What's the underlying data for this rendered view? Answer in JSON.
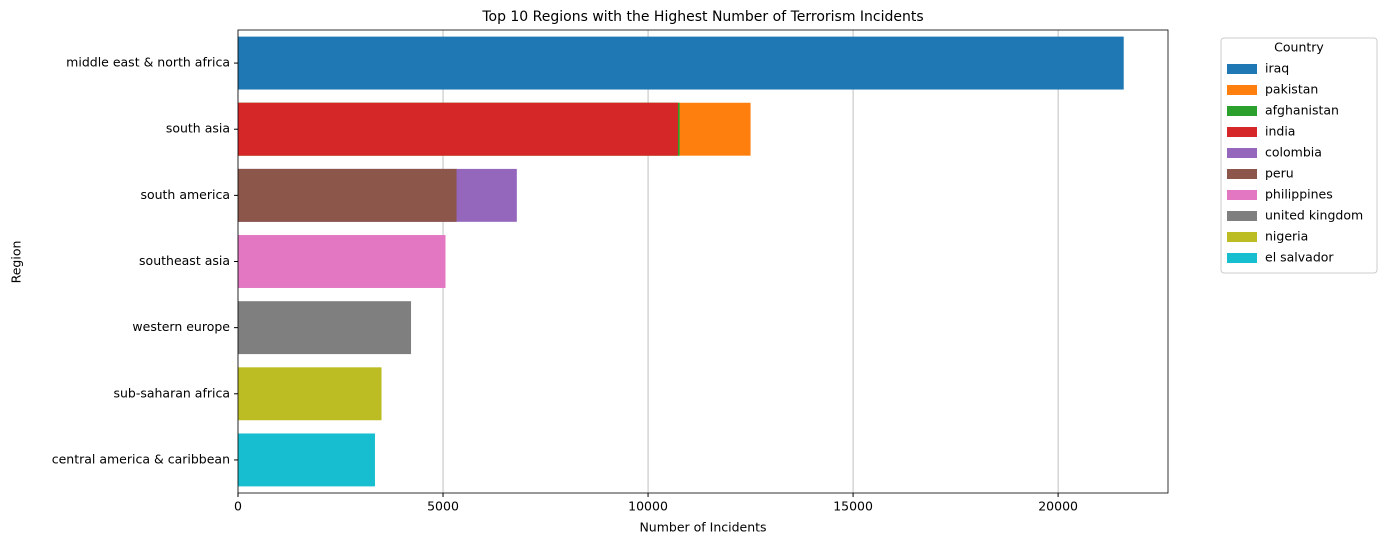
{
  "chart_data": {
    "type": "bar",
    "orientation": "horizontal",
    "overlap": true,
    "title": "Top 10 Regions with the Highest Number of Terrorism Incidents",
    "x_label": "Number of Incidents",
    "y_label": "Region",
    "categories": [
      "middle east & north africa",
      "south asia",
      "south america",
      "southeast asia",
      "western europe",
      "sub-saharan africa",
      "central america & caribbean"
    ],
    "series": [
      {
        "name": "iraq",
        "color": "#1f77b4",
        "values": [
          21600,
          null,
          null,
          null,
          null,
          null,
          null
        ]
      },
      {
        "name": "pakistan",
        "color": "#ff7f0e",
        "values": [
          null,
          12500,
          null,
          null,
          null,
          null,
          null
        ]
      },
      {
        "name": "afghanistan",
        "color": "#2ca02c",
        "values": [
          null,
          10770,
          null,
          null,
          null,
          null,
          null
        ]
      },
      {
        "name": "india",
        "color": "#d62728",
        "values": [
          null,
          10730,
          null,
          null,
          null,
          null,
          null
        ]
      },
      {
        "name": "colombia",
        "color": "#9467bd",
        "values": [
          null,
          null,
          6800,
          null,
          null,
          null,
          null
        ]
      },
      {
        "name": "peru",
        "color": "#8c564b",
        "values": [
          null,
          null,
          5330,
          null,
          null,
          null,
          null
        ]
      },
      {
        "name": "philippines",
        "color": "#e377c2",
        "values": [
          null,
          null,
          null,
          5060,
          null,
          null,
          null
        ]
      },
      {
        "name": "united kingdom",
        "color": "#7f7f7f",
        "values": [
          null,
          null,
          null,
          null,
          4220,
          null,
          null
        ]
      },
      {
        "name": "nigeria",
        "color": "#bcbd22",
        "values": [
          null,
          null,
          null,
          null,
          null,
          3500,
          null
        ]
      },
      {
        "name": "el salvador",
        "color": "#17becf",
        "values": [
          null,
          null,
          null,
          null,
          null,
          null,
          3340
        ]
      }
    ],
    "legend_title": "Country",
    "legend_position": "outside upper right",
    "xlim": [
      0,
      22680
    ],
    "xticks": [
      0,
      5000,
      10000,
      15000,
      20000
    ],
    "grid": true
  }
}
